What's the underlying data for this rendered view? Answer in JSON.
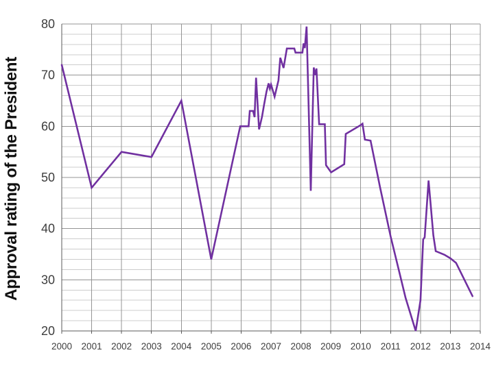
{
  "chart_data": {
    "type": "line",
    "title": "",
    "xlabel": "",
    "ylabel": "Approval rating of the President",
    "xlim": [
      2000,
      2014
    ],
    "ylim": [
      20,
      80
    ],
    "x_ticks": [
      2000,
      2001,
      2002,
      2003,
      2004,
      2005,
      2006,
      2007,
      2008,
      2009,
      2010,
      2011,
      2012,
      2013,
      2014
    ],
    "x_tick_labels": [
      "2000",
      "2001",
      "2002",
      "2003",
      "2004",
      "2005",
      "2006",
      "2007",
      "2008",
      "2009",
      "2010",
      "2011",
      "2012",
      "2013",
      "2014"
    ],
    "y_ticks": [
      20,
      30,
      40,
      50,
      60,
      70,
      80
    ],
    "y_tick_labels": [
      "20",
      "30",
      "40",
      "50",
      "60",
      "70",
      "80"
    ],
    "y_minor_step": 2,
    "grid": "vertical-major, horizontal-major, horizontal-minor",
    "legend": "none",
    "series": [
      {
        "name": "Approval rating of the President",
        "color": "#7030A0",
        "points": [
          [
            2000.0,
            72.0
          ],
          [
            2001.0,
            48.0
          ],
          [
            2002.0,
            55.0
          ],
          [
            2003.0,
            54.0
          ],
          [
            2004.0,
            65.0
          ],
          [
            2005.0,
            34.0
          ],
          [
            2005.97,
            60.0
          ],
          [
            2006.25,
            60.0
          ],
          [
            2006.29,
            63.0
          ],
          [
            2006.4,
            63.0
          ],
          [
            2006.45,
            61.8
          ],
          [
            2006.5,
            69.5
          ],
          [
            2006.6,
            59.4
          ],
          [
            2006.7,
            61.9
          ],
          [
            2006.77,
            64.3
          ],
          [
            2006.85,
            66.8
          ],
          [
            2006.92,
            68.4
          ],
          [
            2006.96,
            67.4
          ],
          [
            2007.0,
            68.2
          ],
          [
            2007.12,
            65.8
          ],
          [
            2007.25,
            69.0
          ],
          [
            2007.31,
            73.4
          ],
          [
            2007.42,
            71.4
          ],
          [
            2007.53,
            75.2
          ],
          [
            2007.78,
            75.2
          ],
          [
            2007.82,
            74.4
          ],
          [
            2008.05,
            74.4
          ],
          [
            2008.09,
            76.2
          ],
          [
            2008.13,
            75.3
          ],
          [
            2008.19,
            79.5
          ],
          [
            2008.33,
            47.4
          ],
          [
            2008.43,
            71.5
          ],
          [
            2008.48,
            70.0
          ],
          [
            2008.52,
            71.3
          ],
          [
            2008.61,
            60.4
          ],
          [
            2008.8,
            60.4
          ],
          [
            2008.84,
            52.4
          ],
          [
            2009.01,
            51.0
          ],
          [
            2009.45,
            52.6
          ],
          [
            2009.5,
            58.5
          ],
          [
            2009.99,
            60.2
          ],
          [
            2010.06,
            60.5
          ],
          [
            2010.14,
            57.4
          ],
          [
            2010.33,
            57.2
          ],
          [
            2010.65,
            48.0
          ],
          [
            2011.0,
            38.5
          ],
          [
            2011.5,
            26.5
          ],
          [
            2011.84,
            20.0
          ],
          [
            2012.0,
            26.0
          ],
          [
            2012.09,
            37.9
          ],
          [
            2012.14,
            38.3
          ],
          [
            2012.27,
            49.4
          ],
          [
            2012.43,
            38.7
          ],
          [
            2012.51,
            35.6
          ],
          [
            2012.8,
            34.9
          ],
          [
            2013.0,
            34.2
          ],
          [
            2013.19,
            33.3
          ],
          [
            2013.74,
            26.8
          ]
        ]
      }
    ]
  },
  "colors": {
    "background": "#ffffff",
    "line": "#7030A0",
    "major_grid": "#949494",
    "minor_grid": "#cccccc",
    "axis_line": "#5a5a5a",
    "tick_text": "#3d3d3d",
    "title_text": "#111111"
  }
}
